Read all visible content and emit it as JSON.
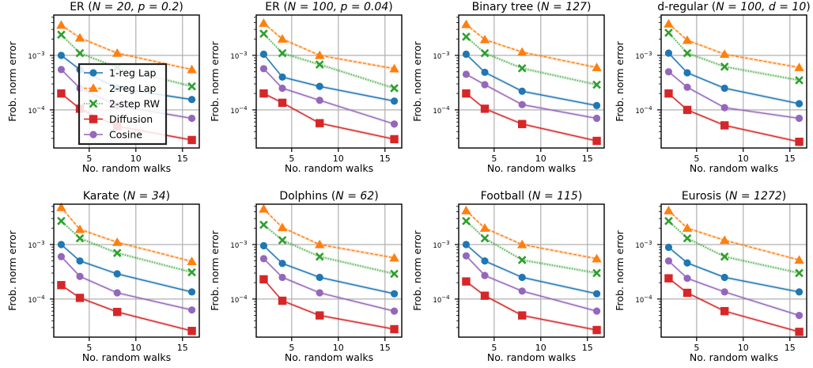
{
  "chart_data": {
    "type": "line",
    "yscale": "log",
    "x": [
      2,
      4,
      8,
      16
    ],
    "xlim": [
      1.2,
      16.8
    ],
    "ylim": [
      2e-05,
      0.0055
    ],
    "xticks": [
      5,
      10,
      15
    ],
    "yticks": [
      {
        "value": 0.0001,
        "base": "10",
        "exp": "−4"
      },
      {
        "value": 0.001,
        "base": "10",
        "exp": "−3"
      }
    ],
    "xlabel": "No. random walks",
    "ylabel": "Frob. norm error",
    "grid": true,
    "legend": {
      "panel": 0,
      "placement": "lower-left"
    },
    "series_styles": [
      {
        "name": "1-reg Lap",
        "color": "#1f77b4",
        "marker": "circle",
        "dash": "solid"
      },
      {
        "name": "2-reg Lap",
        "color": "#ff7f0e",
        "marker": "triangle",
        "dash": "dashed"
      },
      {
        "name": "2-step RW",
        "color": "#2ca02c",
        "marker": "x",
        "dash": "dotted"
      },
      {
        "name": "Diffusion",
        "color": "#d62728",
        "marker": "square",
        "dash": "solid"
      },
      {
        "name": "Cosine",
        "color": "#9467bd",
        "marker": "circle",
        "dash": "solid"
      }
    ],
    "panels": [
      {
        "title_pre": "ER (",
        "title_math": "N = 20, p = 0.2",
        "title_post": ")",
        "series": [
          {
            "name": "1-reg Lap",
            "values": [
              0.001,
              0.00055,
              0.00025,
              0.000155
            ]
          },
          {
            "name": "2-reg Lap",
            "values": [
              0.0036,
              0.0021,
              0.0011,
              0.00055
            ]
          },
          {
            "name": "2-step RW",
            "values": [
              0.0024,
              0.0011,
              0.0006,
              0.00027
            ]
          },
          {
            "name": "Diffusion",
            "values": [
              0.0002,
              0.000105,
              5e-05,
              2.8e-05
            ]
          },
          {
            "name": "Cosine",
            "values": [
              0.00055,
              0.00025,
              0.00012,
              7e-05
            ]
          }
        ]
      },
      {
        "title_pre": "ER (",
        "title_math": "N = 100, p = 0.04",
        "title_post": ")",
        "series": [
          {
            "name": "1-reg Lap",
            "values": [
              0.00105,
              0.0004,
              0.00027,
              0.000145
            ]
          },
          {
            "name": "2-reg Lap",
            "values": [
              0.0039,
              0.002,
              0.001,
              0.00057
            ]
          },
          {
            "name": "2-step RW",
            "values": [
              0.0025,
              0.0011,
              0.00068,
              0.00025
            ]
          },
          {
            "name": "Diffusion",
            "values": [
              0.0002,
              0.000135,
              5.7e-05,
              2.9e-05
            ]
          },
          {
            "name": "Cosine",
            "values": [
              0.00057,
              0.00025,
              0.00015,
              5.5e-05
            ]
          }
        ]
      },
      {
        "title_pre": "Binary tree (",
        "title_math": "N = 127",
        "title_post": ")",
        "series": [
          {
            "name": "1-reg Lap",
            "values": [
              0.00105,
              0.00049,
              0.00022,
              0.00012
            ]
          },
          {
            "name": "2-reg Lap",
            "values": [
              0.0037,
              0.00195,
              0.00115,
              0.0006
            ]
          },
          {
            "name": "2-step RW",
            "values": [
              0.0022,
              0.0011,
              0.00058,
              0.00029
            ]
          },
          {
            "name": "Diffusion",
            "values": [
              0.0002,
              0.000105,
              5.5e-05,
              2.7e-05
            ]
          },
          {
            "name": "Cosine",
            "values": [
              0.00045,
              0.00029,
              0.000125,
              7e-05
            ]
          }
        ]
      },
      {
        "title_pre": "d-regular (",
        "title_math": "N = 100, d = 10",
        "title_post": ")",
        "series": [
          {
            "name": "1-reg Lap",
            "values": [
              0.0011,
              0.00048,
              0.00025,
              0.00013
            ]
          },
          {
            "name": "2-reg Lap",
            "values": [
              0.0038,
              0.0019,
              0.00105,
              0.0006
            ]
          },
          {
            "name": "2-step RW",
            "values": [
              0.0026,
              0.0011,
              0.00062,
              0.00035
            ]
          },
          {
            "name": "Diffusion",
            "values": [
              0.0002,
              0.0001,
              5.2e-05,
              2.6e-05
            ]
          },
          {
            "name": "Cosine",
            "values": [
              0.0005,
              0.00026,
              0.00011,
              7e-05
            ]
          }
        ]
      },
      {
        "title_pre": "Karate (",
        "title_math": "N = 34",
        "title_post": ")",
        "series": [
          {
            "name": "1-reg Lap",
            "values": [
              0.001,
              0.0005,
              0.00029,
              0.000135
            ]
          },
          {
            "name": "2-reg Lap",
            "values": [
              0.0048,
              0.0019,
              0.0011,
              0.00049
            ]
          },
          {
            "name": "2-step RW",
            "values": [
              0.0027,
              0.0013,
              0.0007,
              0.00031
            ]
          },
          {
            "name": "Diffusion",
            "values": [
              0.00018,
              0.000105,
              5.8e-05,
              2.6e-05
            ]
          },
          {
            "name": "Cosine",
            "values": [
              0.0006,
              0.00026,
              0.00013,
              6.3e-05
            ]
          }
        ]
      },
      {
        "title_pre": "Dolphins (",
        "title_math": "N = 62",
        "title_post": ")",
        "series": [
          {
            "name": "1-reg Lap",
            "values": [
              0.00095,
              0.00045,
              0.00025,
              0.000125
            ]
          },
          {
            "name": "2-reg Lap",
            "values": [
              0.0045,
              0.00205,
              0.001,
              0.00057
            ]
          },
          {
            "name": "2-step RW",
            "values": [
              0.0023,
              0.0012,
              0.0006,
              0.00029
            ]
          },
          {
            "name": "Diffusion",
            "values": [
              0.00023,
              9.3e-05,
              5e-05,
              2.8e-05
            ]
          },
          {
            "name": "Cosine",
            "values": [
              0.00055,
              0.00025,
              0.00013,
              6e-05
            ]
          }
        ]
      },
      {
        "title_pre": "Football (",
        "title_math": "N = 115",
        "title_post": ")",
        "series": [
          {
            "name": "1-reg Lap",
            "values": [
              0.001,
              0.0005,
              0.00025,
              0.000125
            ]
          },
          {
            "name": "2-reg Lap",
            "values": [
              0.0042,
              0.002,
              0.001,
              0.00055
            ]
          },
          {
            "name": "2-step RW",
            "values": [
              0.0027,
              0.0013,
              0.00052,
              0.0003
            ]
          },
          {
            "name": "Diffusion",
            "values": [
              0.00021,
              0.000115,
              5e-05,
              2.7e-05
            ]
          },
          {
            "name": "Cosine",
            "values": [
              0.00062,
              0.00027,
              0.00014,
              6e-05
            ]
          }
        ]
      },
      {
        "title_pre": "Eurosis (",
        "title_math": "N = 1272",
        "title_post": ")",
        "series": [
          {
            "name": "1-reg Lap",
            "values": [
              0.00089,
              0.00046,
              0.00025,
              0.000135
            ]
          },
          {
            "name": "2-reg Lap",
            "values": [
              0.0042,
              0.002,
              0.0012,
              0.00052
            ]
          },
          {
            "name": "2-step RW",
            "values": [
              0.0027,
              0.0013,
              0.0006,
              0.0003
            ]
          },
          {
            "name": "Diffusion",
            "values": [
              0.00024,
              0.00013,
              6e-05,
              2.5e-05
            ]
          },
          {
            "name": "Cosine",
            "values": [
              0.0005,
              0.00024,
              0.000135,
              5e-05
            ]
          }
        ]
      }
    ]
  }
}
